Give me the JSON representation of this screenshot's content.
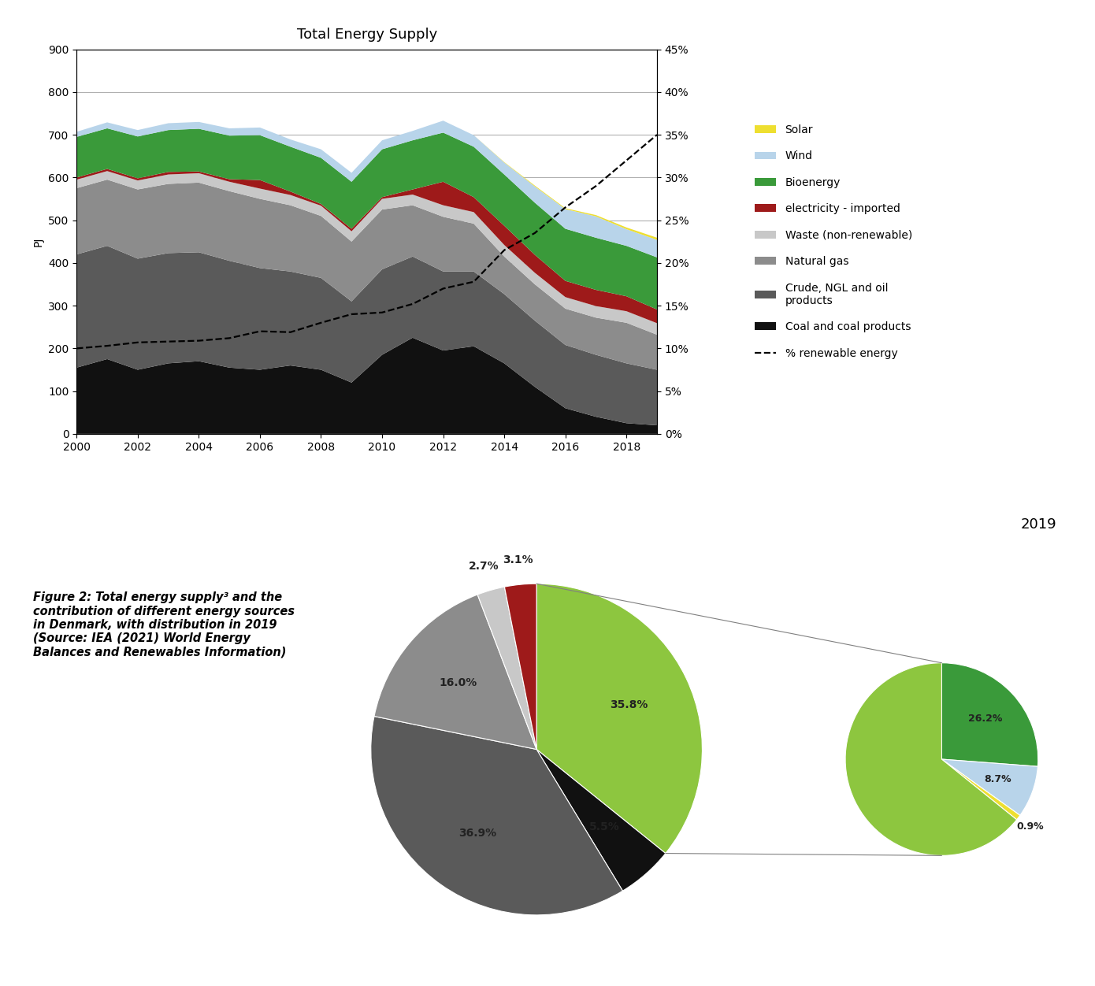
{
  "chart_data": [
    {
      "type": "area",
      "stacked": true,
      "title": "Total Energy Supply",
      "x": [
        2000,
        2001,
        2002,
        2003,
        2004,
        2005,
        2006,
        2007,
        2008,
        2009,
        2010,
        2011,
        2012,
        2013,
        2014,
        2015,
        2016,
        2017,
        2018,
        2019
      ],
      "xlim": [
        2000,
        2019
      ],
      "xticks": [
        2000,
        2002,
        2004,
        2006,
        2008,
        2010,
        2012,
        2014,
        2016,
        2018
      ],
      "ylabel": "PJ",
      "ylim": [
        0,
        900
      ],
      "yticks": [
        0,
        100,
        200,
        300,
        400,
        500,
        600,
        700,
        800,
        900
      ],
      "y2lim": [
        0,
        45
      ],
      "y2ticks": [
        {
          "value": 0,
          "label": "0%"
        },
        {
          "value": 5,
          "label": "5%"
        },
        {
          "value": 10,
          "label": "10%"
        },
        {
          "value": 15,
          "label": "15%"
        },
        {
          "value": 20,
          "label": "20%"
        },
        {
          "value": 25,
          "label": "25%"
        },
        {
          "value": 30,
          "label": "30%"
        },
        {
          "value": 35,
          "label": "35%"
        },
        {
          "value": 40,
          "label": "40%"
        },
        {
          "value": 45,
          "label": "45%"
        }
      ],
      "grid": "y",
      "legend": "center left",
      "series": [
        {
          "name": "Coal and coal products",
          "color": "#111111",
          "values": [
            155,
            175,
            150,
            165,
            170,
            155,
            150,
            160,
            150,
            120,
            185,
            225,
            195,
            205,
            165,
            110,
            60,
            40,
            25,
            20
          ]
        },
        {
          "name": "Crude, NGL and oil\nproducts",
          "color": "#5a5a5a",
          "values": [
            265,
            265,
            260,
            258,
            255,
            250,
            238,
            220,
            215,
            190,
            200,
            190,
            185,
            175,
            162,
            155,
            148,
            145,
            140,
            130
          ]
        },
        {
          "name": "Natural gas",
          "color": "#8c8c8c",
          "values": [
            155,
            155,
            162,
            162,
            163,
            163,
            162,
            155,
            145,
            140,
            140,
            120,
            128,
            112,
            88,
            85,
            85,
            87,
            95,
            82
          ]
        },
        {
          "name": "Waste (non-renewable)",
          "color": "#c8c8c8",
          "values": [
            20,
            20,
            21,
            22,
            22,
            22,
            24,
            24,
            24,
            24,
            25,
            25,
            27,
            27,
            27,
            27,
            27,
            27,
            27,
            27
          ]
        },
        {
          "name": "electricity - imported",
          "color": "#9e1a1a",
          "values": [
            5,
            5,
            5,
            6,
            4,
            6,
            20,
            8,
            4,
            6,
            4,
            12,
            55,
            35,
            45,
            42,
            38,
            38,
            35,
            32
          ]
        },
        {
          "name": "Bioenergy",
          "color": "#3a9a3a",
          "values": [
            95,
            95,
            98,
            98,
            100,
            102,
            105,
            105,
            108,
            110,
            112,
            115,
            115,
            118,
            120,
            122,
            122,
            122,
            118,
            122
          ]
        },
        {
          "name": "Wind",
          "color": "#b8d4ea",
          "values": [
            12,
            14,
            15,
            16,
            16,
            17,
            18,
            17,
            20,
            21,
            21,
            22,
            28,
            27,
            28,
            38,
            46,
            50,
            39,
            41
          ]
        },
        {
          "name": "Solar",
          "color": "#eedf30",
          "values": [
            0,
            0,
            0,
            0,
            0,
            0,
            0,
            0,
            0,
            0,
            0,
            0,
            0,
            0,
            1,
            2,
            2,
            3,
            4,
            5
          ]
        },
        {
          "name": "% renewable energy",
          "type": "line",
          "axis": "y2",
          "color": "black",
          "line_style": "dashed",
          "values": [
            10.0,
            10.3,
            10.7,
            10.8,
            10.9,
            11.2,
            12.0,
            11.9,
            13.0,
            14.0,
            14.2,
            15.2,
            17.0,
            17.8,
            21.5,
            23.5,
            26.5,
            29.0,
            32.0,
            35.0
          ]
        }
      ]
    },
    {
      "type": "pie",
      "title": "2019",
      "values": [
        35.8,
        5.5,
        36.9,
        16.0,
        2.7,
        3.1
      ],
      "colors": [
        "#8dc63f",
        "#111111",
        "#5a5a5a",
        "#8c8c8c",
        "#c8c8c8",
        "#9e1a1a"
      ],
      "value_labels": [
        "35.8%",
        "5.5%",
        "36.9%",
        "16.0%",
        "2.7%",
        "3.1%"
      ],
      "data_labels": true,
      "annotations": [
        "Figure 2: Total energy supply³ and the\ncontribution of different energy sources\nin Denmark, with distribution in 2019\n(Source: IEA (2021) World Energy\nBalances and Renewables Information)"
      ]
    },
    {
      "type": "pie",
      "values": [
        26.2,
        8.7,
        0.9,
        64.2
      ],
      "colors": [
        "#3a9a3a",
        "#b8d4ea",
        "#eedf30",
        "#8dc63f"
      ],
      "value_labels": [
        "26.2%",
        "8.7%",
        "0.9%",
        null
      ],
      "data_labels": true
    }
  ]
}
